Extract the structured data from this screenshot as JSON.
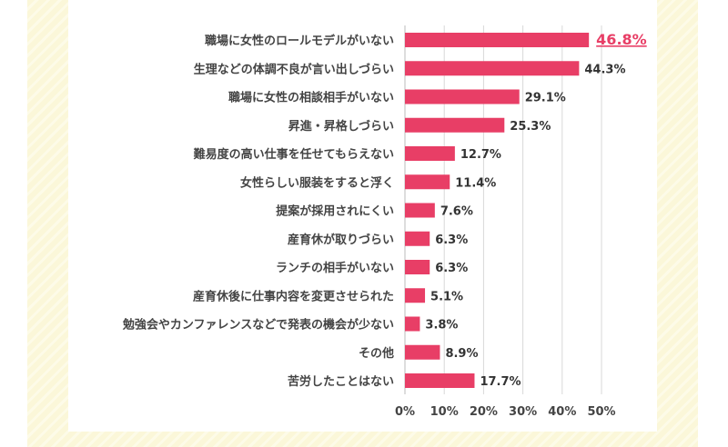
{
  "chart_data": {
    "type": "bar",
    "orientation": "horizontal",
    "categories": [
      "職場に女性のロールモデルがいない",
      "生理などの体調不良が言い出しづらい",
      "職場に女性の相談相手がいない",
      "昇進・昇格しづらい",
      "難易度の高い仕事を任せてもらえない",
      "女性らしい服装をすると浮く",
      "提案が採用されにくい",
      "産育休が取りづらい",
      "ランチの相手がいない",
      "産育休後に仕事内容を変更させられた",
      "勉強会やカンファレンスなどで発表の機会が少ない",
      "その他",
      "苦労したことはない"
    ],
    "values": [
      46.8,
      44.3,
      29.1,
      25.3,
      12.7,
      11.4,
      7.6,
      6.3,
      6.3,
      5.1,
      3.8,
      8.9,
      17.7
    ],
    "value_labels": [
      "46.8%",
      "44.3%",
      "29.1%",
      "25.3%",
      "12.7%",
      "11.4%",
      "7.6%",
      "6.3%",
      "6.3%",
      "5.1%",
      "3.8%",
      "8.9%",
      "17.7%"
    ],
    "highlight_index": 0,
    "xlim": [
      0,
      50
    ],
    "xticks": [
      "0%",
      "10%",
      "20%",
      "30%",
      "40%",
      "50%"
    ],
    "grid": true,
    "colors": {
      "bar": "#e83e66",
      "highlight_label": "#e83e66",
      "grid": "#d8d8d8",
      "background_stripes": "#fbf7d9"
    }
  }
}
